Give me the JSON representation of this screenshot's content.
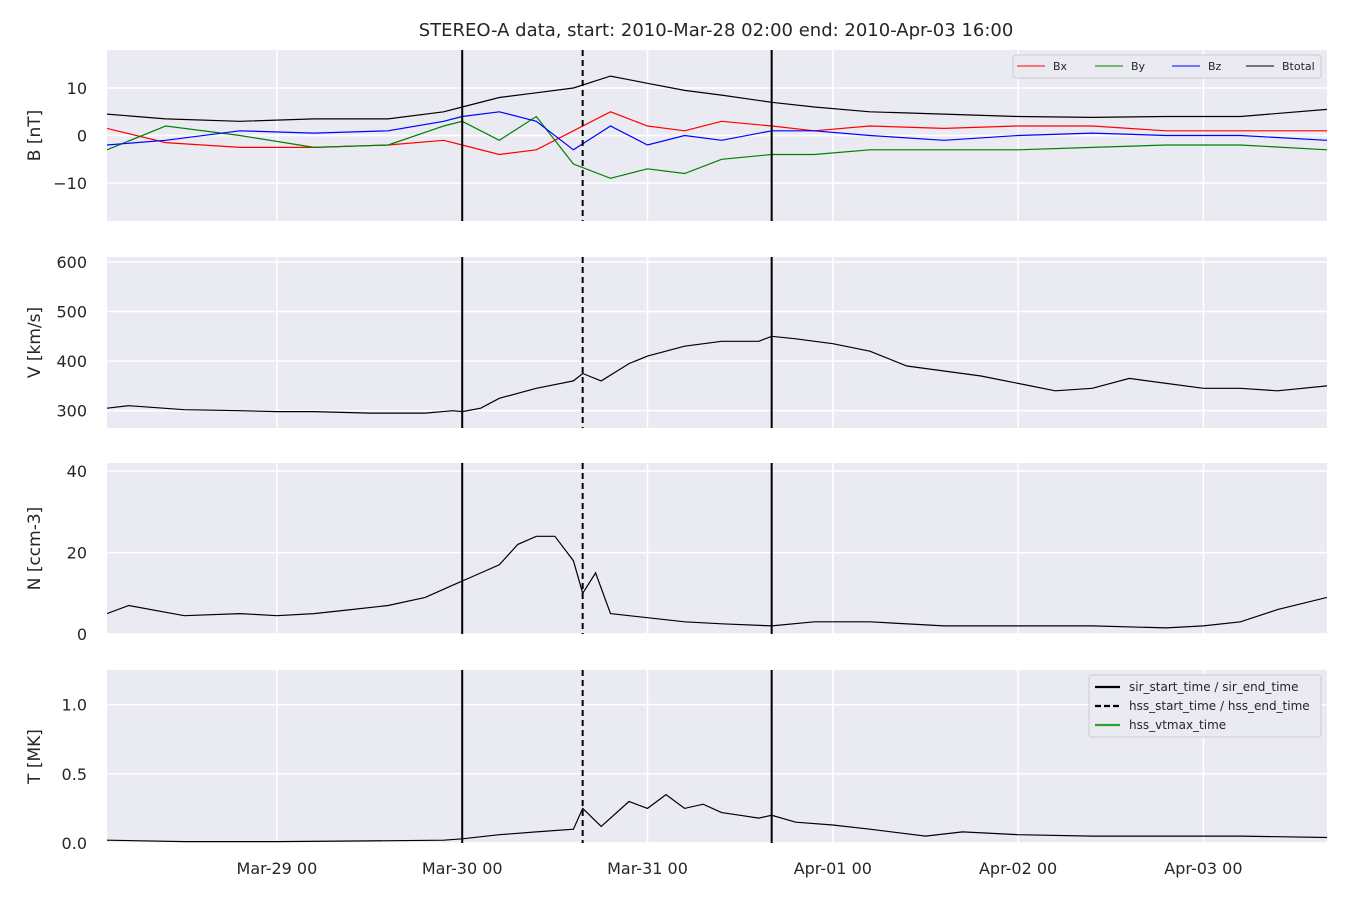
{
  "title": "STEREO-A data, start: 2010-Mar-28 02:00  end: 2010-Apr-03 16:00",
  "x_tick_labels": [
    "Mar-29 00",
    "Mar-30 00",
    "Mar-31 00",
    "Apr-01 00",
    "Apr-02 00",
    "Apr-03 00"
  ],
  "colors": {
    "panel_bg": "#eaeaf2",
    "grid": "#ffffff",
    "Bx": "#ff0000",
    "By": "#008000",
    "Bz": "#0000ff",
    "Btotal": "#000000",
    "hss_vtmax": "#2ca02c"
  },
  "legend_top": {
    "placement": "top-right",
    "items": [
      "Bx",
      "By",
      "Bz",
      "Btotal"
    ]
  },
  "legend_bottom": {
    "placement": "top-right",
    "items": [
      {
        "label": "sir_start_time / sir_end_time",
        "style": "solid"
      },
      {
        "label": "hss_start_time / hss_end_time",
        "style": "dashed"
      },
      {
        "label": "hss_vtmax_time",
        "style": "solid-green"
      }
    ]
  },
  "chart_data": {
    "type": "line",
    "title": "STEREO-A data, start: 2010-Mar-28 02:00  end: 2010-Apr-03 16:00",
    "x_range_days_from_Mar28": [
      0.083,
      6.667
    ],
    "x_ticks_days_from_Mar28": [
      1,
      2,
      3,
      4,
      5,
      6
    ],
    "grid": true,
    "markers": {
      "sir_start_time_day": 2.0,
      "hss_start_time_day": 2.65,
      "sir_end_time_day": 3.67
    },
    "panels": [
      {
        "ylabel": "B [nT]",
        "ylim": [
          -18,
          18
        ],
        "yticks": [
          -10,
          0,
          10
        ],
        "ytick_labels": [
          "−10",
          "0",
          "10"
        ],
        "series": [
          {
            "name": "Btotal",
            "x": [
              0.083,
              0.4,
              0.8,
              1.2,
              1.6,
              1.9,
              2.0,
              2.2,
              2.4,
              2.6,
              2.8,
              3.0,
              3.2,
              3.4,
              3.67,
              3.9,
              4.2,
              4.6,
              5.0,
              5.4,
              5.8,
              6.2,
              6.667
            ],
            "y": [
              4.5,
              3.5,
              3,
              3.5,
              3.5,
              5,
              6,
              8,
              9,
              10,
              12.5,
              11,
              9.5,
              8.5,
              7,
              6,
              5,
              4.5,
              4,
              3.8,
              4,
              4,
              5.5
            ]
          },
          {
            "name": "Bx",
            "x": [
              0.083,
              0.4,
              0.8,
              1.2,
              1.6,
              1.9,
              2.0,
              2.2,
              2.4,
              2.6,
              2.8,
              3.0,
              3.2,
              3.4,
              3.67,
              3.9,
              4.2,
              4.6,
              5.0,
              5.4,
              5.8,
              6.2,
              6.667
            ],
            "y": [
              1.5,
              -1.5,
              -2.5,
              -2.5,
              -2,
              -1,
              -2,
              -4,
              -3,
              1,
              5,
              2,
              1,
              3,
              2,
              1,
              2,
              1.5,
              2,
              2,
              1,
              1,
              1
            ]
          },
          {
            "name": "By",
            "x": [
              0.083,
              0.4,
              0.8,
              1.2,
              1.6,
              1.9,
              2.0,
              2.2,
              2.4,
              2.6,
              2.8,
              3.0,
              3.2,
              3.4,
              3.67,
              3.9,
              4.2,
              4.6,
              5.0,
              5.4,
              5.8,
              6.2,
              6.667
            ],
            "y": [
              -3,
              2,
              0,
              -2.5,
              -2,
              2,
              3,
              -1,
              4,
              -6,
              -9,
              -7,
              -8,
              -5,
              -4,
              -4,
              -3,
              -3,
              -3,
              -2.5,
              -2,
              -2,
              -3
            ]
          },
          {
            "name": "Bz",
            "x": [
              0.083,
              0.4,
              0.8,
              1.2,
              1.6,
              1.9,
              2.0,
              2.2,
              2.4,
              2.6,
              2.8,
              3.0,
              3.2,
              3.4,
              3.67,
              3.9,
              4.2,
              4.6,
              5.0,
              5.4,
              5.8,
              6.2,
              6.667
            ],
            "y": [
              -2,
              -1,
              1,
              0.5,
              1,
              3,
              4,
              5,
              3,
              -3,
              2,
              -2,
              0,
              -1,
              1,
              1,
              0,
              -1,
              0,
              0.5,
              0,
              0,
              -1
            ]
          }
        ]
      },
      {
        "ylabel": "V [km/s]",
        "ylim": [
          265,
          610
        ],
        "yticks": [
          300,
          400,
          500,
          600
        ],
        "ytick_labels": [
          "300",
          "400",
          "500",
          "600"
        ],
        "series": [
          {
            "name": "",
            "x": [
              0.083,
              0.2,
              0.5,
              0.8,
              1.0,
              1.2,
              1.5,
              1.8,
              1.95,
              2.0,
              2.1,
              2.2,
              2.4,
              2.6,
              2.65,
              2.75,
              2.9,
              3.0,
              3.2,
              3.4,
              3.6,
              3.67,
              3.8,
              4.0,
              4.2,
              4.4,
              4.6,
              4.8,
              5.0,
              5.2,
              5.4,
              5.6,
              5.8,
              6.0,
              6.2,
              6.4,
              6.667
            ],
            "y": [
              305,
              310,
              302,
              300,
              298,
              298,
              295,
              295,
              300,
              298,
              305,
              325,
              345,
              360,
              375,
              360,
              395,
              410,
              430,
              440,
              440,
              450,
              445,
              435,
              420,
              390,
              380,
              370,
              355,
              340,
              345,
              365,
              355,
              345,
              345,
              340,
              350
            ]
          }
        ]
      },
      {
        "ylabel": "N [ccm-3]",
        "ylim": [
          0,
          42
        ],
        "yticks": [
          0,
          20,
          40
        ],
        "ytick_labels": [
          "0",
          "20",
          "40"
        ],
        "series": [
          {
            "name": "",
            "x": [
              0.083,
              0.2,
              0.5,
              0.8,
              1.0,
              1.2,
              1.4,
              1.6,
              1.8,
              1.95,
              2.05,
              2.2,
              2.3,
              2.4,
              2.5,
              2.6,
              2.65,
              2.72,
              2.8,
              3.0,
              3.2,
              3.4,
              3.67,
              3.9,
              4.2,
              4.6,
              5.0,
              5.4,
              5.8,
              6.0,
              6.2,
              6.4,
              6.667
            ],
            "y": [
              5,
              7,
              4.5,
              5,
              4.5,
              5,
              6,
              7,
              9,
              12,
              14,
              17,
              22,
              24,
              24,
              18,
              10,
              15,
              5,
              4,
              3,
              2.5,
              2,
              3,
              3,
              2,
              2,
              2,
              1.5,
              2,
              3,
              6,
              9
            ]
          }
        ]
      },
      {
        "ylabel": "T [MK]",
        "ylim": [
          0,
          1.25
        ],
        "yticks": [
          0.0,
          0.5,
          1.0
        ],
        "ytick_labels": [
          "0.0",
          "0.5",
          "1.0"
        ],
        "series": [
          {
            "name": "",
            "x": [
              0.083,
              0.5,
              1.0,
              1.5,
              1.9,
              2.0,
              2.2,
              2.4,
              2.6,
              2.65,
              2.75,
              2.9,
              3.0,
              3.1,
              3.2,
              3.3,
              3.4,
              3.5,
              3.6,
              3.67,
              3.8,
              4.0,
              4.2,
              4.5,
              4.7,
              5.0,
              5.4,
              5.8,
              6.2,
              6.667
            ],
            "y": [
              0.02,
              0.01,
              0.01,
              0.015,
              0.02,
              0.03,
              0.06,
              0.08,
              0.1,
              0.25,
              0.12,
              0.3,
              0.25,
              0.35,
              0.25,
              0.28,
              0.22,
              0.2,
              0.18,
              0.2,
              0.15,
              0.13,
              0.1,
              0.05,
              0.08,
              0.06,
              0.05,
              0.05,
              0.05,
              0.04
            ]
          }
        ]
      }
    ]
  }
}
